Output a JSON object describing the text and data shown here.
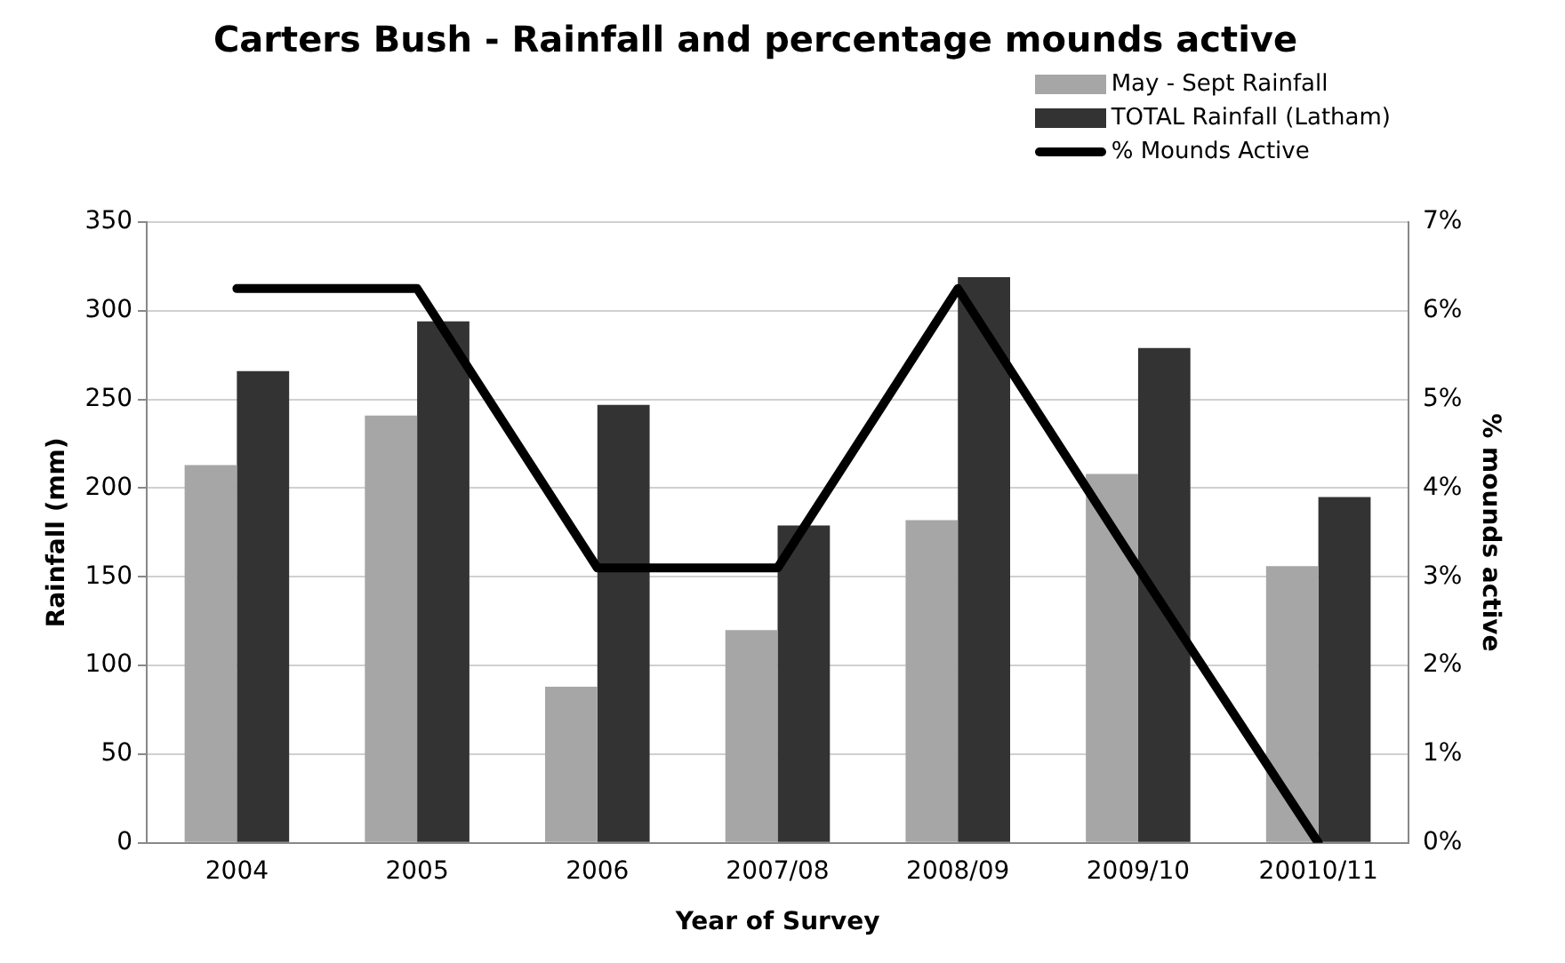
{
  "chart_data": {
    "type": "bar",
    "title": "Carters Bush - Rainfall and percentage mounds active",
    "xlabel": "Year of Survey",
    "ylabel": "Rainfall (mm)",
    "y2label": "% mounds active",
    "categories": [
      "2004",
      "2005",
      "2006",
      "2007/08",
      "2008/09",
      "2009/10",
      "20010/11"
    ],
    "series": [
      {
        "name": "May - Sept Rainfall",
        "color": "#a6a6a6",
        "values": [
          213,
          241,
          88,
          120,
          182,
          208,
          156
        ]
      },
      {
        "name": "TOTAL Rainfall (Latham)",
        "color": "#333333",
        "values": [
          266,
          294,
          247,
          179,
          319,
          279,
          195
        ]
      },
      {
        "name": "% Mounds Active",
        "type": "line",
        "axis": "y2",
        "color": "#000000",
        "values": [
          6.25,
          6.25,
          3.1,
          3.1,
          6.25,
          3.1,
          0
        ]
      }
    ],
    "ylim": [
      0,
      350
    ],
    "yticks": [
      0,
      50,
      100,
      150,
      200,
      250,
      300,
      350
    ],
    "y2lim": [
      0,
      7
    ],
    "y2ticks": [
      {
        "value": 0,
        "label": "0%"
      },
      {
        "value": 1,
        "label": "1%"
      },
      {
        "value": 2,
        "label": "2%"
      },
      {
        "value": 3,
        "label": "3%"
      },
      {
        "value": 4,
        "label": "4%"
      },
      {
        "value": 5,
        "label": "5%"
      },
      {
        "value": 6,
        "label": "6%"
      },
      {
        "value": 7,
        "label": "7%"
      }
    ],
    "grid": "y",
    "legend": "top right",
    "marker": "none"
  }
}
